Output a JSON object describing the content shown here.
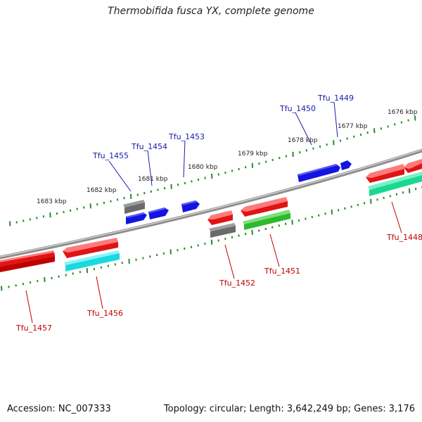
{
  "title": "Thermobifida fusca YX, complete genome",
  "footer": {
    "accession": "Accession: NC_007333",
    "summary": "Topology: circular; Length: 3,642,249 bp; Genes: 3,176"
  },
  "colors": {
    "backbone": "#8c8c8c",
    "tick": "#2a8a2a",
    "top_label": "#1a1aa8",
    "bottom_label": "#c00000"
  },
  "kbp_labels": [
    "1683 kbp",
    "1682 kbp",
    "1681 kbp",
    "1680 kbp",
    "1679 kbp",
    "1678 kbp",
    "1677 kbp",
    "1676 kbp"
  ],
  "genes_top": [
    {
      "name": "Tfu_1455",
      "color": "#6a6a6a"
    },
    {
      "name": "Tfu_1454",
      "color": "#1414e0"
    },
    {
      "name": "Tfu_1453",
      "color": "#1414e0"
    },
    {
      "name": "Tfu_1450",
      "color": "#1414e0"
    },
    {
      "name": "Tfu_1449",
      "color": "#1414e0"
    }
  ],
  "genes_bottom": [
    {
      "name": "Tfu_1457",
      "color": "#e01414"
    },
    {
      "name": "Tfu_1456",
      "color": "#1ad8e0"
    },
    {
      "name": "Tfu_1452",
      "color": "#6a6a6a"
    },
    {
      "name": "Tfu_1451",
      "color": "#2eb82e"
    },
    {
      "name": "Tfu_1448",
      "color": "#1ad890"
    }
  ]
}
